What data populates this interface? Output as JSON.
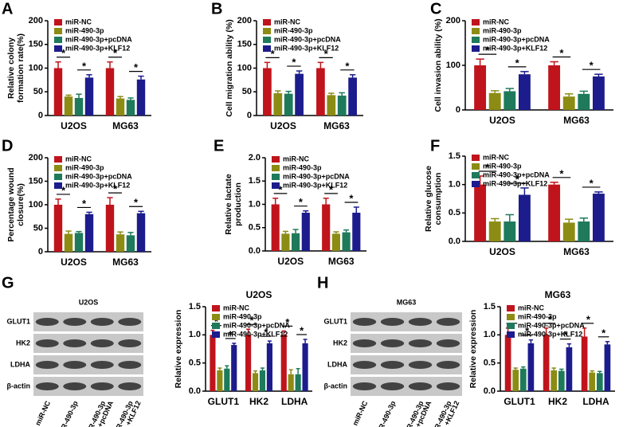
{
  "chart_data": [
    {
      "type": "bar",
      "panel_label": "A",
      "ylabel": [
        "Relative colony",
        "formation rate(%)"
      ],
      "categories": [
        "U2OS",
        "MG63"
      ],
      "ylim": [
        0,
        200
      ],
      "yticks": [
        0,
        50,
        100,
        150,
        200
      ],
      "series": [
        {
          "name": "miR-NC",
          "color": "#c0141c",
          "values": [
            100,
            100
          ],
          "errors": [
            13,
            13
          ]
        },
        {
          "name": "miR-490-3p",
          "color": "#8c8c14",
          "values": [
            40,
            36
          ],
          "errors": [
            3,
            4
          ]
        },
        {
          "name": "miR-490-3p+pcDNA",
          "color": "#1e7a5a",
          "values": [
            37,
            33
          ],
          "errors": [
            8,
            4
          ]
        },
        {
          "name": "miR-490-3p+KLF12",
          "color": "#1c1c8c",
          "values": [
            80,
            76
          ],
          "errors": [
            6,
            7
          ]
        }
      ],
      "annotations": [
        "*",
        "*",
        "*",
        "*"
      ]
    },
    {
      "type": "bar",
      "panel_label": "B",
      "ylabel": [
        "Cell migration ability (%)"
      ],
      "categories": [
        "U2OS",
        "MG63"
      ],
      "ylim": [
        0,
        200
      ],
      "yticks": [
        0,
        50,
        100,
        150,
        200
      ],
      "series": [
        {
          "name": "miR-NC",
          "color": "#c0141c",
          "values": [
            100,
            100
          ],
          "errors": [
            12,
            12
          ]
        },
        {
          "name": "miR-490-3p",
          "color": "#8c8c14",
          "values": [
            47,
            43
          ],
          "errors": [
            5,
            4
          ]
        },
        {
          "name": "miR-490-3p+pcDNA",
          "color": "#1e7a5a",
          "values": [
            46,
            42
          ],
          "errors": [
            5,
            6
          ]
        },
        {
          "name": "miR-490-3p+KLF12",
          "color": "#1c1c8c",
          "values": [
            88,
            80
          ],
          "errors": [
            6,
            6
          ]
        }
      ],
      "annotations": [
        "*",
        "*",
        "*",
        "*"
      ]
    },
    {
      "type": "bar",
      "panel_label": "C",
      "ylabel": [
        "Cell invasion ability (%)"
      ],
      "categories": [
        "U2OS",
        "MG63"
      ],
      "ylim": [
        0,
        200
      ],
      "yticks": [
        0,
        100,
        200
      ],
      "series": [
        {
          "name": "miR-NC",
          "color": "#c0141c",
          "values": [
            100,
            100
          ],
          "errors": [
            14,
            8
          ]
        },
        {
          "name": "miR-490-3p",
          "color": "#8c8c14",
          "values": [
            38,
            30
          ],
          "errors": [
            5,
            6
          ]
        },
        {
          "name": "miR-490-3p+pcDNA",
          "color": "#1e7a5a",
          "values": [
            42,
            36
          ],
          "errors": [
            6,
            6
          ]
        },
        {
          "name": "miR-490-3p+KLF12",
          "color": "#1c1c8c",
          "values": [
            80,
            75
          ],
          "errors": [
            6,
            5
          ]
        }
      ],
      "annotations": [
        "*",
        "*",
        "*",
        "*"
      ]
    },
    {
      "type": "bar",
      "panel_label": "D",
      "ylabel": [
        "Percentage wound",
        "closure(%)"
      ],
      "categories": [
        "U2OS",
        "MG63"
      ],
      "ylim": [
        0,
        200
      ],
      "yticks": [
        0,
        50,
        100,
        150,
        200
      ],
      "series": [
        {
          "name": "miR-NC",
          "color": "#c0141c",
          "values": [
            100,
            100
          ],
          "errors": [
            12,
            15
          ]
        },
        {
          "name": "miR-490-3p",
          "color": "#8c8c14",
          "values": [
            38,
            37
          ],
          "errors": [
            6,
            5
          ]
        },
        {
          "name": "miR-490-3p+pcDNA",
          "color": "#1e7a5a",
          "values": [
            40,
            35
          ],
          "errors": [
            3,
            6
          ]
        },
        {
          "name": "miR-490-3p+KLF12",
          "color": "#1c1c8c",
          "values": [
            80,
            82
          ],
          "errors": [
            4,
            4
          ]
        }
      ],
      "annotations": [
        "*",
        "*",
        "*",
        "*"
      ]
    },
    {
      "type": "bar",
      "panel_label": "E",
      "ylabel": [
        "Relative lactate",
        "production"
      ],
      "categories": [
        "U2OS",
        "MG63"
      ],
      "ylim": [
        0,
        2
      ],
      "yticks": [
        {
          "value": 0,
          "label": "0.0"
        },
        0.5,
        {
          "value": 1,
          "label": "1.0"
        },
        1.5,
        {
          "value": 2,
          "label": "2.0"
        }
      ],
      "series": [
        {
          "name": "miR-NC",
          "color": "#c0141c",
          "values": [
            1.0,
            1.0
          ],
          "errors": [
            0.13,
            0.13
          ]
        },
        {
          "name": "miR-490-3p",
          "color": "#8c8c14",
          "values": [
            0.37,
            0.37
          ],
          "errors": [
            0.05,
            0.04
          ]
        },
        {
          "name": "miR-490-3p+pcDNA",
          "color": "#1e7a5a",
          "values": [
            0.38,
            0.4
          ],
          "errors": [
            0.08,
            0.05
          ]
        },
        {
          "name": "miR-490-3p+KLF12",
          "color": "#1c1c8c",
          "values": [
            0.82,
            0.82
          ],
          "errors": [
            0.04,
            0.12
          ]
        }
      ],
      "annotations": [
        "*",
        "*",
        "*",
        "*"
      ]
    },
    {
      "type": "bar",
      "panel_label": "F",
      "ylabel": [
        "Relative glucose",
        "consumption"
      ],
      "categories": [
        "U2OS",
        "MG63"
      ],
      "ylim": [
        0,
        1.5
      ],
      "yticks": [
        {
          "value": 0,
          "label": "0.0"
        },
        0.5,
        {
          "value": 1,
          "label": "1.0"
        },
        1.5
      ],
      "series": [
        {
          "name": "miR-NC",
          "color": "#c0141c",
          "values": [
            1.0,
            1.0
          ],
          "errors": [
            0.15,
            0.04
          ]
        },
        {
          "name": "miR-490-3p",
          "color": "#8c8c14",
          "values": [
            0.35,
            0.33
          ],
          "errors": [
            0.05,
            0.06
          ]
        },
        {
          "name": "miR-490-3p+pcDNA",
          "color": "#1e7a5a",
          "values": [
            0.35,
            0.35
          ],
          "errors": [
            0.12,
            0.06
          ]
        },
        {
          "name": "miR-490-3p+KLF12",
          "color": "#1c1c8c",
          "values": [
            0.82,
            0.84
          ],
          "errors": [
            0.12,
            0.03
          ]
        }
      ],
      "annotations": [
        "*",
        "*",
        "*",
        "*"
      ]
    },
    {
      "type": "bar",
      "panel_label": "G",
      "title": "U2OS",
      "ylabel": [
        "Relative expression"
      ],
      "categories": [
        "GLUT1",
        "HK2",
        "LDHA"
      ],
      "ylim": [
        0,
        1.5
      ],
      "yticks": [
        {
          "value": 0,
          "label": "0.0"
        },
        0.5,
        {
          "value": 1,
          "label": "1.0"
        },
        1.5
      ],
      "series": [
        {
          "name": "miR-NC",
          "color": "#c0141c",
          "values": [
            1.0,
            1.0,
            1.0
          ],
          "errors": [
            0.08,
            0.1,
            0.07
          ]
        },
        {
          "name": "miR-490-3p",
          "color": "#8c8c14",
          "values": [
            0.37,
            0.32,
            0.3
          ],
          "errors": [
            0.04,
            0.04,
            0.08
          ]
        },
        {
          "name": "miR-490-3p+pcDNA",
          "color": "#1e7a5a",
          "values": [
            0.4,
            0.37,
            0.3
          ],
          "errors": [
            0.05,
            0.04,
            0.1
          ]
        },
        {
          "name": "miR-490-3p+KLF12",
          "color": "#1c1c8c",
          "values": [
            0.82,
            0.85,
            0.85
          ],
          "errors": [
            0.03,
            0.04,
            0.07
          ]
        }
      ],
      "annotations": [
        "*",
        "*",
        "*",
        "*",
        "*",
        "*"
      ]
    },
    {
      "type": "bar",
      "panel_label": "H",
      "title": "MG63",
      "ylabel": [
        "Relative expression"
      ],
      "categories": [
        "GLUT1",
        "HK2",
        "LDHA"
      ],
      "ylim": [
        0,
        1.5
      ],
      "yticks": [
        {
          "value": 0,
          "label": "0.0"
        },
        0.5,
        {
          "value": 1,
          "label": "1.0"
        },
        1.5
      ],
      "series": [
        {
          "name": "miR-NC",
          "color": "#c0141c",
          "values": [
            1.0,
            1.0,
            0.97
          ],
          "errors": [
            0.12,
            0.12,
            0.15
          ]
        },
        {
          "name": "miR-490-3p",
          "color": "#8c8c14",
          "values": [
            0.38,
            0.37,
            0.33
          ],
          "errors": [
            0.03,
            0.04,
            0.03
          ]
        },
        {
          "name": "miR-490-3p+pcDNA",
          "color": "#1e7a5a",
          "values": [
            0.4,
            0.36,
            0.32
          ],
          "errors": [
            0.03,
            0.03,
            0.03
          ]
        },
        {
          "name": "miR-490-3p+KLF12",
          "color": "#1c1c8c",
          "values": [
            0.85,
            0.78,
            0.83
          ],
          "errors": [
            0.06,
            0.06,
            0.05
          ]
        }
      ],
      "annotations": [
        "*",
        "*",
        "*",
        "*",
        "*",
        "*"
      ]
    }
  ],
  "blots": [
    {
      "title": "U2OS",
      "rows": [
        "GLUT1",
        "HK2",
        "LDHA",
        "β-actin"
      ],
      "lanes": [
        [
          "miR-NC"
        ],
        [
          "miR-490-3p"
        ],
        [
          "miR-490-3p",
          "+pcDNA"
        ],
        [
          "miR-490-3p",
          "+KLF12"
        ]
      ]
    },
    {
      "title": "MG63",
      "rows": [
        "GLUT1",
        "HK2",
        "LDHA",
        "β-actin"
      ],
      "lanes": [
        [
          "miR-NC"
        ],
        [
          "miR-490-3p"
        ],
        [
          "miR-490-3p",
          "+pcDNA"
        ],
        [
          "miR-490-3p",
          "+KLF12"
        ]
      ]
    }
  ]
}
